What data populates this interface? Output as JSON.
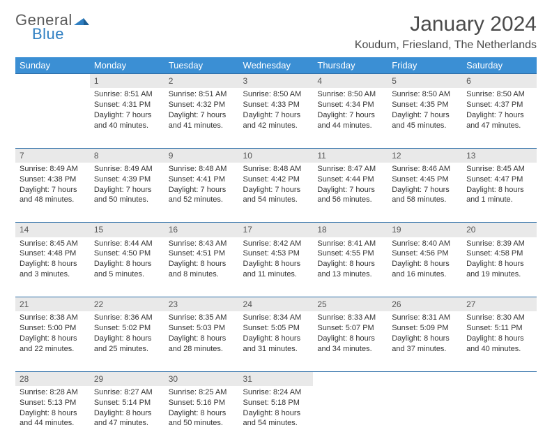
{
  "logo": {
    "line1": "General",
    "line2": "Blue"
  },
  "title": "January 2024",
  "location": "Koudum, Friesland, The Netherlands",
  "colors": {
    "header_bg": "#3b8fd4",
    "header_text": "#ffffff",
    "daynum_bg": "#e9e9e9",
    "rule": "#2e6fa8",
    "logo_gray": "#5a5a5a",
    "logo_blue": "#2f7fc2",
    "page_bg": "#ffffff"
  },
  "weekdays": [
    "Sunday",
    "Monday",
    "Tuesday",
    "Wednesday",
    "Thursday",
    "Friday",
    "Saturday"
  ],
  "weeks": [
    {
      "nums": [
        "",
        "1",
        "2",
        "3",
        "4",
        "5",
        "6"
      ],
      "cells": [
        null,
        {
          "sunrise": "Sunrise: 8:51 AM",
          "sunset": "Sunset: 4:31 PM",
          "d1": "Daylight: 7 hours",
          "d2": "and 40 minutes."
        },
        {
          "sunrise": "Sunrise: 8:51 AM",
          "sunset": "Sunset: 4:32 PM",
          "d1": "Daylight: 7 hours",
          "d2": "and 41 minutes."
        },
        {
          "sunrise": "Sunrise: 8:50 AM",
          "sunset": "Sunset: 4:33 PM",
          "d1": "Daylight: 7 hours",
          "d2": "and 42 minutes."
        },
        {
          "sunrise": "Sunrise: 8:50 AM",
          "sunset": "Sunset: 4:34 PM",
          "d1": "Daylight: 7 hours",
          "d2": "and 44 minutes."
        },
        {
          "sunrise": "Sunrise: 8:50 AM",
          "sunset": "Sunset: 4:35 PM",
          "d1": "Daylight: 7 hours",
          "d2": "and 45 minutes."
        },
        {
          "sunrise": "Sunrise: 8:50 AM",
          "sunset": "Sunset: 4:37 PM",
          "d1": "Daylight: 7 hours",
          "d2": "and 47 minutes."
        }
      ]
    },
    {
      "nums": [
        "7",
        "8",
        "9",
        "10",
        "11",
        "12",
        "13"
      ],
      "cells": [
        {
          "sunrise": "Sunrise: 8:49 AM",
          "sunset": "Sunset: 4:38 PM",
          "d1": "Daylight: 7 hours",
          "d2": "and 48 minutes."
        },
        {
          "sunrise": "Sunrise: 8:49 AM",
          "sunset": "Sunset: 4:39 PM",
          "d1": "Daylight: 7 hours",
          "d2": "and 50 minutes."
        },
        {
          "sunrise": "Sunrise: 8:48 AM",
          "sunset": "Sunset: 4:41 PM",
          "d1": "Daylight: 7 hours",
          "d2": "and 52 minutes."
        },
        {
          "sunrise": "Sunrise: 8:48 AM",
          "sunset": "Sunset: 4:42 PM",
          "d1": "Daylight: 7 hours",
          "d2": "and 54 minutes."
        },
        {
          "sunrise": "Sunrise: 8:47 AM",
          "sunset": "Sunset: 4:44 PM",
          "d1": "Daylight: 7 hours",
          "d2": "and 56 minutes."
        },
        {
          "sunrise": "Sunrise: 8:46 AM",
          "sunset": "Sunset: 4:45 PM",
          "d1": "Daylight: 7 hours",
          "d2": "and 58 minutes."
        },
        {
          "sunrise": "Sunrise: 8:45 AM",
          "sunset": "Sunset: 4:47 PM",
          "d1": "Daylight: 8 hours",
          "d2": "and 1 minute."
        }
      ]
    },
    {
      "nums": [
        "14",
        "15",
        "16",
        "17",
        "18",
        "19",
        "20"
      ],
      "cells": [
        {
          "sunrise": "Sunrise: 8:45 AM",
          "sunset": "Sunset: 4:48 PM",
          "d1": "Daylight: 8 hours",
          "d2": "and 3 minutes."
        },
        {
          "sunrise": "Sunrise: 8:44 AM",
          "sunset": "Sunset: 4:50 PM",
          "d1": "Daylight: 8 hours",
          "d2": "and 5 minutes."
        },
        {
          "sunrise": "Sunrise: 8:43 AM",
          "sunset": "Sunset: 4:51 PM",
          "d1": "Daylight: 8 hours",
          "d2": "and 8 minutes."
        },
        {
          "sunrise": "Sunrise: 8:42 AM",
          "sunset": "Sunset: 4:53 PM",
          "d1": "Daylight: 8 hours",
          "d2": "and 11 minutes."
        },
        {
          "sunrise": "Sunrise: 8:41 AM",
          "sunset": "Sunset: 4:55 PM",
          "d1": "Daylight: 8 hours",
          "d2": "and 13 minutes."
        },
        {
          "sunrise": "Sunrise: 8:40 AM",
          "sunset": "Sunset: 4:56 PM",
          "d1": "Daylight: 8 hours",
          "d2": "and 16 minutes."
        },
        {
          "sunrise": "Sunrise: 8:39 AM",
          "sunset": "Sunset: 4:58 PM",
          "d1": "Daylight: 8 hours",
          "d2": "and 19 minutes."
        }
      ]
    },
    {
      "nums": [
        "21",
        "22",
        "23",
        "24",
        "25",
        "26",
        "27"
      ],
      "cells": [
        {
          "sunrise": "Sunrise: 8:38 AM",
          "sunset": "Sunset: 5:00 PM",
          "d1": "Daylight: 8 hours",
          "d2": "and 22 minutes."
        },
        {
          "sunrise": "Sunrise: 8:36 AM",
          "sunset": "Sunset: 5:02 PM",
          "d1": "Daylight: 8 hours",
          "d2": "and 25 minutes."
        },
        {
          "sunrise": "Sunrise: 8:35 AM",
          "sunset": "Sunset: 5:03 PM",
          "d1": "Daylight: 8 hours",
          "d2": "and 28 minutes."
        },
        {
          "sunrise": "Sunrise: 8:34 AM",
          "sunset": "Sunset: 5:05 PM",
          "d1": "Daylight: 8 hours",
          "d2": "and 31 minutes."
        },
        {
          "sunrise": "Sunrise: 8:33 AM",
          "sunset": "Sunset: 5:07 PM",
          "d1": "Daylight: 8 hours",
          "d2": "and 34 minutes."
        },
        {
          "sunrise": "Sunrise: 8:31 AM",
          "sunset": "Sunset: 5:09 PM",
          "d1": "Daylight: 8 hours",
          "d2": "and 37 minutes."
        },
        {
          "sunrise": "Sunrise: 8:30 AM",
          "sunset": "Sunset: 5:11 PM",
          "d1": "Daylight: 8 hours",
          "d2": "and 40 minutes."
        }
      ]
    },
    {
      "nums": [
        "28",
        "29",
        "30",
        "31",
        "",
        "",
        ""
      ],
      "cells": [
        {
          "sunrise": "Sunrise: 8:28 AM",
          "sunset": "Sunset: 5:13 PM",
          "d1": "Daylight: 8 hours",
          "d2": "and 44 minutes."
        },
        {
          "sunrise": "Sunrise: 8:27 AM",
          "sunset": "Sunset: 5:14 PM",
          "d1": "Daylight: 8 hours",
          "d2": "and 47 minutes."
        },
        {
          "sunrise": "Sunrise: 8:25 AM",
          "sunset": "Sunset: 5:16 PM",
          "d1": "Daylight: 8 hours",
          "d2": "and 50 minutes."
        },
        {
          "sunrise": "Sunrise: 8:24 AM",
          "sunset": "Sunset: 5:18 PM",
          "d1": "Daylight: 8 hours",
          "d2": "and 54 minutes."
        },
        null,
        null,
        null
      ]
    }
  ]
}
